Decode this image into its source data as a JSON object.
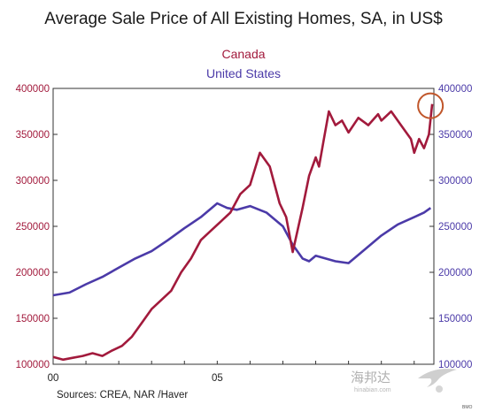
{
  "chart_data": {
    "type": "line",
    "title": "Average Sale Price of All Existing Homes, SA, in US$",
    "xlabel": "",
    "ylabel": "",
    "x_ticks": [
      "00",
      "05"
    ],
    "xlim": [
      2000.0,
      2011.6
    ],
    "y_left": {
      "ticks": [
        "100000",
        "150000",
        "200000",
        "250000",
        "300000",
        "350000",
        "400000"
      ],
      "range": [
        100000,
        400000
      ],
      "color": "#a21a3c"
    },
    "y_right": {
      "ticks": [
        "100000",
        "150000",
        "200000",
        "250000",
        "300000",
        "350000",
        "400000"
      ],
      "range": [
        100000,
        400000
      ],
      "color": "#4b3aa8"
    },
    "grid": false,
    "legend_placement": "top-center",
    "annotation": "circle around final Canada value",
    "series": [
      {
        "name": "Canada",
        "color": "#a21a3c",
        "x": [
          2000.0,
          2000.3,
          2000.6,
          2000.9,
          2001.2,
          2001.5,
          2001.8,
          2002.1,
          2002.4,
          2002.7,
          2003.0,
          2003.3,
          2003.6,
          2003.9,
          2004.2,
          2004.5,
          2004.8,
          2005.1,
          2005.4,
          2005.7,
          2006.0,
          2006.3,
          2006.6,
          2006.9,
          2007.1,
          2007.3,
          2007.6,
          2007.8,
          2008.0,
          2008.1,
          2008.25,
          2008.4,
          2008.6,
          2008.8,
          2009.0,
          2009.3,
          2009.6,
          2009.9,
          2010.0,
          2010.3,
          2010.6,
          2010.9,
          2011.0,
          2011.15,
          2011.3,
          2011.45,
          2011.55
        ],
        "values": [
          108000,
          105000,
          107000,
          109000,
          112000,
          109000,
          115000,
          120000,
          130000,
          145000,
          160000,
          170000,
          180000,
          200000,
          215000,
          235000,
          245000,
          255000,
          265000,
          285000,
          295000,
          330000,
          315000,
          275000,
          260000,
          222000,
          270000,
          305000,
          325000,
          315000,
          345000,
          375000,
          360000,
          365000,
          352000,
          368000,
          360000,
          372000,
          365000,
          375000,
          360000,
          345000,
          330000,
          345000,
          335000,
          350000,
          383000
        ]
      },
      {
        "name": "United States",
        "color": "#4b3aa8",
        "x": [
          2000.0,
          2000.5,
          2001.0,
          2001.5,
          2002.0,
          2002.5,
          2003.0,
          2003.5,
          2004.0,
          2004.5,
          2005.0,
          2005.3,
          2005.6,
          2006.0,
          2006.5,
          2007.0,
          2007.3,
          2007.6,
          2007.8,
          2008.0,
          2008.3,
          2008.6,
          2009.0,
          2009.5,
          2010.0,
          2010.5,
          2011.0,
          2011.3,
          2011.5
        ],
        "values": [
          175000,
          178000,
          187000,
          195000,
          205000,
          215000,
          223000,
          235000,
          248000,
          260000,
          275000,
          270000,
          268000,
          272000,
          265000,
          250000,
          230000,
          215000,
          212000,
          218000,
          215000,
          212000,
          210000,
          225000,
          240000,
          252000,
          260000,
          265000,
          270000
        ]
      }
    ]
  },
  "legend": {
    "canada": "Canada",
    "us": "United States"
  },
  "source": "Sources:  CREA, NAR /Haver",
  "watermark": {
    "text": "海邦达",
    "sub": "hinabian.com"
  },
  "credit": "BMO"
}
